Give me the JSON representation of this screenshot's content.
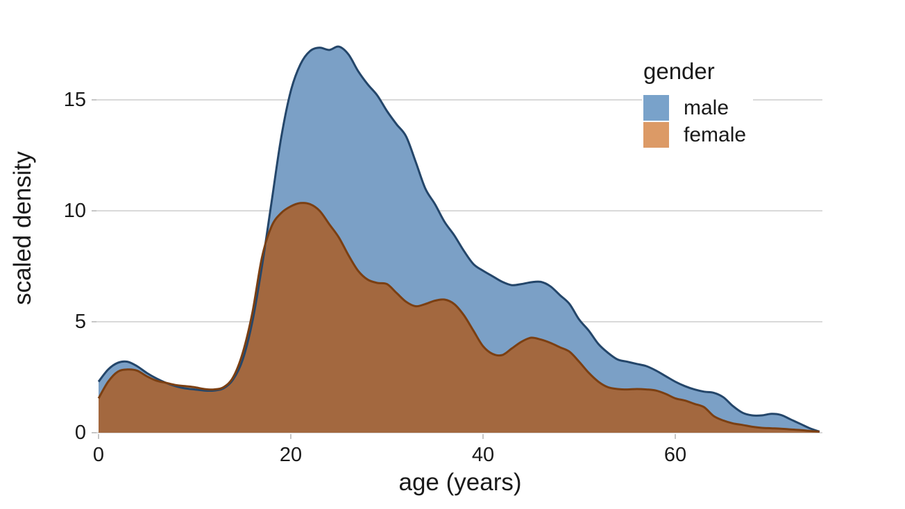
{
  "figure": {
    "background": "#ffffff",
    "text_color": "#1a1a1a"
  },
  "y_axis": {
    "label": "scaled density",
    "tick_labels": [
      "0",
      "5",
      "10",
      "15"
    ]
  },
  "x_axis": {
    "label": "age (years)",
    "tick_labels": [
      "0",
      "20",
      "40",
      "60"
    ]
  },
  "legend": {
    "title": "gender",
    "entries": [
      {
        "label": "male",
        "color": "#79a2ca"
      },
      {
        "label": "female",
        "color": "#dc9a66"
      }
    ]
  },
  "chart_data": {
    "type": "area",
    "subtype": "overlapping-density",
    "title": "",
    "xlabel": "age (years)",
    "ylabel": "scaled density",
    "xlim": [
      0,
      75.3
    ],
    "ylim": [
      0,
      18.6
    ],
    "x_ticks": [
      0,
      20,
      40,
      60
    ],
    "y_ticks": [
      0,
      5,
      10,
      15
    ],
    "grid": "horizontal",
    "gridline_color": "#d9d9d9",
    "tick_mark_color": "#c6c6c6",
    "overlap_fill": "#a3683f",
    "legend_position": "top-right",
    "x": [
      0,
      1,
      2,
      3,
      4,
      5,
      6,
      7,
      8,
      9,
      10,
      11,
      12,
      13,
      14,
      15,
      16,
      17,
      18,
      19,
      20,
      21,
      22,
      23,
      24,
      25,
      26,
      27,
      28,
      29,
      30,
      31,
      32,
      33,
      34,
      35,
      36,
      37,
      38,
      39,
      40,
      41,
      42,
      43,
      44,
      45,
      46,
      47,
      48,
      49,
      50,
      51,
      52,
      53,
      54,
      55,
      56,
      57,
      58,
      59,
      60,
      61,
      62,
      63,
      64,
      65,
      66,
      67,
      68,
      69,
      70,
      71,
      72,
      73,
      74,
      75
    ],
    "series": [
      {
        "name": "male",
        "fill": "#7ba0c6",
        "stroke": "#24466a",
        "values": [
          2.3,
          2.85,
          3.15,
          3.2,
          3.0,
          2.7,
          2.45,
          2.25,
          2.1,
          2.0,
          1.95,
          1.9,
          1.9,
          2.0,
          2.4,
          3.3,
          5.0,
          7.5,
          10.4,
          13.3,
          15.4,
          16.6,
          17.2,
          17.35,
          17.25,
          17.4,
          17.05,
          16.3,
          15.7,
          15.2,
          14.5,
          13.9,
          13.35,
          12.2,
          11.0,
          10.3,
          9.5,
          8.9,
          8.2,
          7.6,
          7.3,
          7.05,
          6.8,
          6.65,
          6.7,
          6.78,
          6.8,
          6.6,
          6.2,
          5.8,
          5.1,
          4.6,
          4.0,
          3.6,
          3.3,
          3.2,
          3.1,
          3.0,
          2.8,
          2.55,
          2.3,
          2.1,
          1.95,
          1.85,
          1.8,
          1.6,
          1.2,
          0.9,
          0.78,
          0.78,
          0.85,
          0.8,
          0.6,
          0.4,
          0.2,
          0.05
        ]
      },
      {
        "name": "female",
        "fill": "#d89968",
        "stroke": "#7b3f12",
        "values": [
          1.55,
          2.3,
          2.75,
          2.85,
          2.8,
          2.55,
          2.35,
          2.25,
          2.15,
          2.1,
          2.05,
          1.97,
          1.95,
          2.05,
          2.5,
          3.6,
          5.4,
          7.9,
          9.3,
          9.9,
          10.2,
          10.35,
          10.3,
          10.0,
          9.4,
          8.8,
          8.0,
          7.3,
          6.9,
          6.75,
          6.7,
          6.3,
          5.9,
          5.7,
          5.8,
          5.95,
          6.0,
          5.8,
          5.3,
          4.6,
          3.9,
          3.55,
          3.5,
          3.8,
          4.1,
          4.28,
          4.2,
          4.05,
          3.85,
          3.65,
          3.2,
          2.7,
          2.3,
          2.05,
          1.97,
          1.95,
          1.97,
          1.95,
          1.9,
          1.75,
          1.55,
          1.45,
          1.3,
          1.15,
          0.75,
          0.55,
          0.42,
          0.35,
          0.27,
          0.22,
          0.2,
          0.18,
          0.15,
          0.12,
          0.08,
          0.05
        ]
      }
    ]
  }
}
